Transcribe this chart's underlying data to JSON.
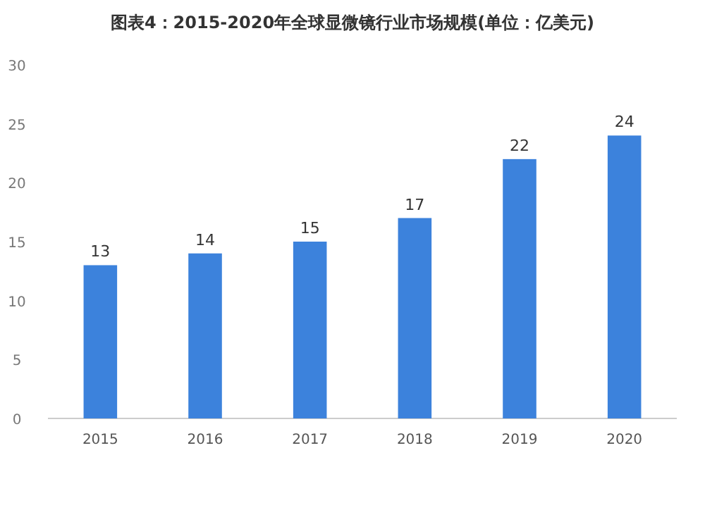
{
  "chart_data": {
    "type": "bar",
    "title": "图表4：2015-2020年全球显微镜行业市场规模(单位：亿美元)",
    "categories": [
      "2015",
      "2016",
      "2017",
      "2018",
      "2019",
      "2020"
    ],
    "values": [
      13,
      14,
      15,
      17,
      22,
      24
    ],
    "color": "#3c82dc",
    "data_labels": true,
    "ylim": [
      0,
      30
    ],
    "yticks": [
      0,
      5,
      10,
      15,
      20,
      25,
      30
    ],
    "grid": false
  }
}
